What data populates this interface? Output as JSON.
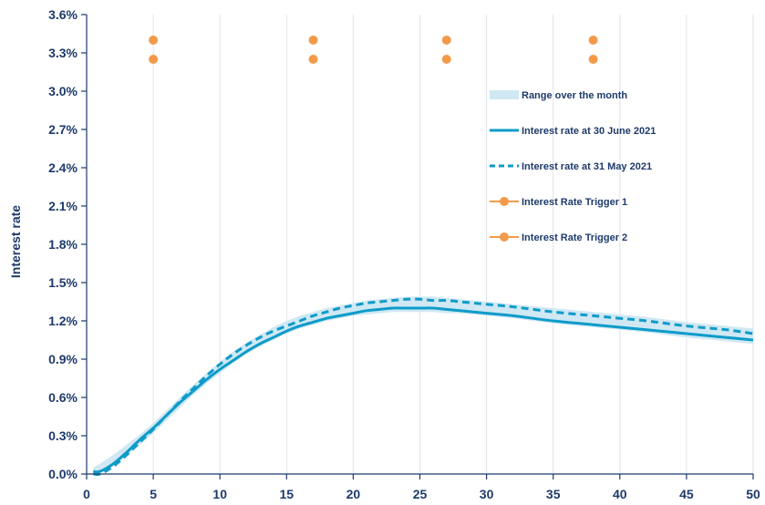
{
  "chart_data": {
    "type": "line",
    "xlabel": "",
    "ylabel": "Interest rate",
    "xlim": [
      0,
      50
    ],
    "ylim": [
      0,
      0.036
    ],
    "x_ticks": [
      0,
      5,
      10,
      15,
      20,
      25,
      30,
      35,
      40,
      45,
      50
    ],
    "x_tick_labels": [
      "0",
      "5",
      "10",
      "15",
      "20",
      "25",
      "30",
      "35",
      "40",
      "45",
      "50"
    ],
    "y_ticks": [
      0,
      0.003,
      0.006,
      0.009,
      0.012,
      0.015,
      0.018,
      0.021,
      0.024,
      0.027,
      0.03,
      0.033,
      0.036
    ],
    "y_tick_labels": [
      "0.0%",
      "0.3%",
      "0.6%",
      "0.9%",
      "1.2%",
      "1.5%",
      "1.8%",
      "2.1%",
      "2.4%",
      "2.7%",
      "3.0%",
      "3.3%",
      "3.6%"
    ],
    "grid": "vertical",
    "legend_position": "right",
    "band": {
      "name": "Range over the month",
      "color": "#cfe8f3",
      "x": [
        0.5,
        1,
        2,
        3,
        4,
        5,
        6,
        7,
        8,
        9,
        10,
        11,
        12,
        13,
        14,
        15,
        16,
        17,
        18,
        19,
        20,
        21,
        22,
        23,
        24,
        25,
        26,
        27,
        28,
        29,
        30,
        32,
        35,
        38,
        40,
        42,
        45,
        48,
        50
      ],
      "low": [
        0.0001,
        0.0001,
        0.0006,
        0.0014,
        0.0023,
        0.0032,
        0.0042,
        0.0052,
        0.0062,
        0.0071,
        0.0079,
        0.0087,
        0.0094,
        0.01,
        0.0105,
        0.011,
        0.0114,
        0.0117,
        0.012,
        0.0122,
        0.0124,
        0.0125,
        0.0126,
        0.0127,
        0.0127,
        0.0127,
        0.0127,
        0.0126,
        0.0126,
        0.0125,
        0.0124,
        0.0122,
        0.0118,
        0.0115,
        0.0113,
        0.0111,
        0.0107,
        0.0104,
        0.0102
      ],
      "high": [
        0.0005,
        0.0008,
        0.0015,
        0.0023,
        0.0031,
        0.004,
        0.005,
        0.006,
        0.007,
        0.0079,
        0.0088,
        0.0096,
        0.0103,
        0.0109,
        0.0115,
        0.012,
        0.0124,
        0.0127,
        0.013,
        0.0132,
        0.0134,
        0.0136,
        0.0137,
        0.0138,
        0.0139,
        0.0139,
        0.0139,
        0.0138,
        0.0137,
        0.0136,
        0.0135,
        0.0133,
        0.013,
        0.0127,
        0.0125,
        0.0123,
        0.0119,
        0.0116,
        0.0114
      ]
    },
    "series": [
      {
        "name": "Interest rate at 30 June 2021",
        "style": "solid",
        "color": "#0e9bc9",
        "x": [
          0.5,
          1,
          2,
          3,
          4,
          5,
          6,
          7,
          8,
          9,
          10,
          11,
          12,
          13,
          14,
          15,
          16,
          17,
          18,
          19,
          20,
          21,
          22,
          23,
          24,
          25,
          26,
          27,
          28,
          29,
          30,
          32,
          35,
          38,
          40,
          42,
          45,
          48,
          50
        ],
        "y": [
          0.0002,
          0.0002,
          0.0008,
          0.0017,
          0.0027,
          0.0036,
          0.0046,
          0.0056,
          0.0065,
          0.0074,
          0.0082,
          0.0089,
          0.0096,
          0.0102,
          0.0107,
          0.0112,
          0.0116,
          0.0119,
          0.0122,
          0.0124,
          0.0126,
          0.0128,
          0.0129,
          0.013,
          0.013,
          0.013,
          0.013,
          0.0129,
          0.0128,
          0.0127,
          0.0126,
          0.0124,
          0.012,
          0.0117,
          0.0115,
          0.0113,
          0.011,
          0.0107,
          0.0105
        ]
      },
      {
        "name": "Interest rate at 31 May 2021",
        "style": "dashed",
        "color": "#0e9bc9",
        "x": [
          0.5,
          1,
          2,
          3,
          4,
          5,
          6,
          7,
          8,
          9,
          10,
          11,
          12,
          13,
          14,
          15,
          16,
          17,
          18,
          19,
          20,
          21,
          22,
          23,
          24,
          25,
          26,
          27,
          28,
          29,
          30,
          32,
          35,
          38,
          40,
          42,
          45,
          48,
          50
        ],
        "y": [
          0.0,
          0.0,
          0.0006,
          0.0015,
          0.0025,
          0.0035,
          0.0046,
          0.0057,
          0.0067,
          0.0077,
          0.0086,
          0.0094,
          0.0101,
          0.0107,
          0.0112,
          0.0116,
          0.012,
          0.0124,
          0.0127,
          0.013,
          0.0132,
          0.0134,
          0.0135,
          0.0136,
          0.0137,
          0.0137,
          0.0136,
          0.0136,
          0.0135,
          0.0134,
          0.0133,
          0.0131,
          0.0127,
          0.0124,
          0.0122,
          0.012,
          0.0116,
          0.0113,
          0.011
        ]
      }
    ],
    "triggers": [
      {
        "name": "Interest Rate Trigger 1",
        "color": "#f39a4a",
        "points": [
          {
            "x": 5,
            "y": 0.034
          },
          {
            "x": 17,
            "y": 0.034
          },
          {
            "x": 27,
            "y": 0.034
          },
          {
            "x": 38,
            "y": 0.034
          }
        ]
      },
      {
        "name": "Interest Rate Trigger 2",
        "color": "#f39a4a",
        "points": [
          {
            "x": 5,
            "y": 0.0325
          },
          {
            "x": 17,
            "y": 0.0325
          },
          {
            "x": 27,
            "y": 0.0325
          },
          {
            "x": 38,
            "y": 0.0325
          }
        ]
      }
    ],
    "legend": [
      {
        "label": "Range over the month",
        "kind": "band"
      },
      {
        "label": "Interest rate at 30 June 2021",
        "kind": "solid"
      },
      {
        "label": "Interest rate at 31 May 2021",
        "kind": "dashed"
      },
      {
        "label": "Interest Rate Trigger 1",
        "kind": "marker"
      },
      {
        "label": "Interest Rate Trigger 2",
        "kind": "marker"
      }
    ]
  },
  "colors": {
    "axis": "#1e3a6b",
    "grid": "#dfe3e8",
    "line": "#0e9bc9",
    "band": "#cfe8f3",
    "trigger": "#f39a4a"
  }
}
